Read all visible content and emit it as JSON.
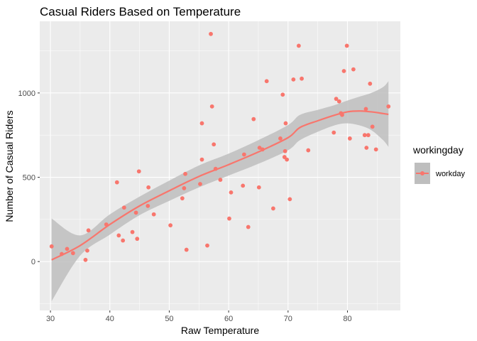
{
  "chart_data": {
    "type": "scatter",
    "title": "Casual Riders Based on Temperature",
    "xlabel": "Raw Temperature",
    "ylabel": "Number of Casual Riders",
    "xlim": [
      28.2,
      88.9
    ],
    "ylim": [
      -290,
      1425
    ],
    "x_ticks": [
      30,
      40,
      50,
      60,
      70,
      80
    ],
    "y_ticks": [
      0,
      500,
      1000
    ],
    "grid": true,
    "legend": {
      "title": "workingday",
      "entries": [
        "workday"
      ],
      "placement": "right"
    },
    "colors": {
      "points": "#F8766D",
      "smooth_line": "#F8766D",
      "confidence_band": "#BEBEBE",
      "panel": "#EBEBEB",
      "grid": "#FFFFFF"
    },
    "series": [
      {
        "name": "workday",
        "points": [
          [
            30.2,
            90
          ],
          [
            31.9,
            45
          ],
          [
            32.8,
            75
          ],
          [
            33.8,
            50
          ],
          [
            35.9,
            10
          ],
          [
            36.2,
            65
          ],
          [
            36.4,
            185
          ],
          [
            39.4,
            220
          ],
          [
            41.2,
            470
          ],
          [
            41.5,
            155
          ],
          [
            42.2,
            125
          ],
          [
            42.4,
            320
          ],
          [
            43.8,
            175
          ],
          [
            44.4,
            290
          ],
          [
            44.6,
            135
          ],
          [
            44.9,
            535
          ],
          [
            46.4,
            330
          ],
          [
            46.5,
            440
          ],
          [
            47.4,
            280
          ],
          [
            50.2,
            215
          ],
          [
            52.2,
            375
          ],
          [
            52.5,
            435
          ],
          [
            52.7,
            520
          ],
          [
            52.9,
            70
          ],
          [
            55.2,
            460
          ],
          [
            55.5,
            820
          ],
          [
            55.5,
            605
          ],
          [
            56.4,
            95
          ],
          [
            57.0,
            1350
          ],
          [
            57.2,
            920
          ],
          [
            57.5,
            695
          ],
          [
            57.8,
            550
          ],
          [
            58.6,
            485
          ],
          [
            60.1,
            255
          ],
          [
            60.4,
            410
          ],
          [
            62.4,
            450
          ],
          [
            62.6,
            635
          ],
          [
            63.3,
            205
          ],
          [
            64.2,
            845
          ],
          [
            65.1,
            440
          ],
          [
            65.2,
            675
          ],
          [
            65.7,
            665
          ],
          [
            66.4,
            1070
          ],
          [
            67.5,
            315
          ],
          [
            68.7,
            730
          ],
          [
            69.1,
            990
          ],
          [
            69.4,
            620
          ],
          [
            69.5,
            655
          ],
          [
            69.6,
            820
          ],
          [
            69.8,
            605
          ],
          [
            70.3,
            370
          ],
          [
            70.9,
            1080
          ],
          [
            71.8,
            1280
          ],
          [
            72.3,
            1085
          ],
          [
            73.4,
            660
          ],
          [
            77.7,
            765
          ],
          [
            78.1,
            965
          ],
          [
            78.6,
            950
          ],
          [
            78.9,
            880
          ],
          [
            79.1,
            870
          ],
          [
            79.4,
            1130
          ],
          [
            79.9,
            1280
          ],
          [
            80.4,
            730
          ],
          [
            81.0,
            1140
          ],
          [
            82.9,
            750
          ],
          [
            83.1,
            905
          ],
          [
            83.2,
            675
          ],
          [
            83.5,
            750
          ],
          [
            83.8,
            1055
          ],
          [
            84.2,
            800
          ],
          [
            84.8,
            665
          ],
          [
            86.9,
            920
          ]
        ]
      }
    ],
    "smooth": {
      "x": [
        30.2,
        35,
        40,
        45,
        50,
        55,
        60,
        65,
        70,
        72,
        75,
        78,
        80,
        82,
        84,
        86,
        86.9
      ],
      "y": [
        10,
        95,
        220,
        330,
        420,
        505,
        575,
        650,
        735,
        795,
        835,
        870,
        888,
        893,
        888,
        878,
        873
      ],
      "lower": [
        -235,
        35,
        160,
        275,
        360,
        440,
        510,
        580,
        660,
        720,
        770,
        810,
        820,
        808,
        780,
        720,
        680
      ],
      "upper": [
        255,
        155,
        280,
        385,
        480,
        570,
        640,
        720,
        810,
        870,
        900,
        930,
        955,
        978,
        1000,
        1035,
        1070
      ]
    }
  }
}
